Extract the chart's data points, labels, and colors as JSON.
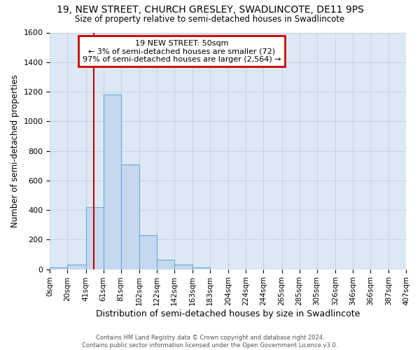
{
  "title_line1": "19, NEW STREET, CHURCH GRESLEY, SWADLINCOTE, DE11 9PS",
  "title_line2": "Size of property relative to semi-detached houses in Swadlincote",
  "xlabel": "Distribution of semi-detached houses by size in Swadlincote",
  "ylabel": "Number of semi-detached properties",
  "footnote": "Contains HM Land Registry data © Crown copyright and database right 2024.\nContains public sector information licensed under the Open Government Licence v3.0.",
  "annotation_title": "19 NEW STREET: 50sqm",
  "annotation_line2": "← 3% of semi-detached houses are smaller (72)",
  "annotation_line3": "97% of semi-detached houses are larger (2,564) →",
  "bin_edges": [
    0,
    20,
    41,
    61,
    81,
    102,
    122,
    142,
    163,
    183,
    204,
    224,
    244,
    265,
    285,
    305,
    326,
    346,
    366,
    387,
    407
  ],
  "counts": [
    10,
    30,
    420,
    1180,
    710,
    230,
    65,
    30,
    10,
    0,
    0,
    0,
    0,
    0,
    0,
    0,
    0,
    0,
    0,
    0
  ],
  "bar_color": "#c5d8ef",
  "bar_edge_color": "#6aabd2",
  "vline_color": "#cc0000",
  "vline_x": 50,
  "annotation_box_color": "#cc0000",
  "ylim": [
    0,
    1600
  ],
  "yticks": [
    0,
    200,
    400,
    600,
    800,
    1000,
    1200,
    1400,
    1600
  ],
  "grid_color": "#c8d4e0",
  "background_color": "#dce8f5"
}
